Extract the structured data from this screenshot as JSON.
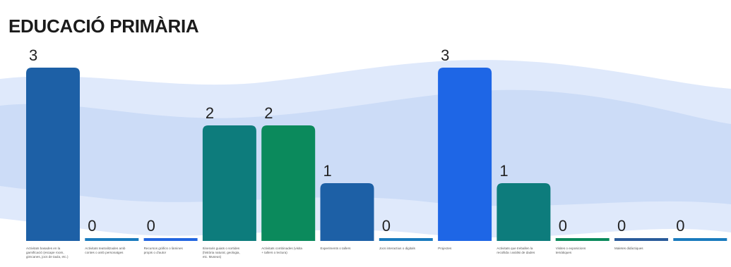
{
  "page": {
    "title": "EDUCACIÓ PRIMÀRIA"
  },
  "colors": {
    "background": "#ffffff",
    "wave_light": "#dfe9fb",
    "wave_mid": "#ccdcf7"
  },
  "chart_data": {
    "type": "bar",
    "title": "EDUCACIÓ PRIMÀRIA",
    "xlabel": "",
    "ylabel": "",
    "ylim": [
      0,
      3
    ],
    "grid": false,
    "legend": "none",
    "categories": [
      "Activitats basades en la gamificació (escape room, gimcanes, jocs de taula, etc.)",
      "Activitats teatralitzades amb contes o amb personatges",
      "Recursos gràfics o làmines propis o d'autor",
      "Itineraris guiats o sortides (història natural, geologia, etc. Museus)",
      "Activitats combinades (visita + tallers o lectura)",
      "Experiments o tallers",
      "Jocs interactius o digitals",
      "Projectes",
      "Activitats que treballen la recollida i anàlisi de dades",
      "Visites o exposicions temàtiques",
      "Maletes didàctiques",
      ""
    ],
    "values": [
      3,
      0,
      0,
      2,
      2,
      1,
      0,
      3,
      1,
      0,
      0,
      0
    ],
    "colors": [
      "#1d60a6",
      "#1a7bbd",
      "#2366e0",
      "#0d7c7c",
      "#0b8a5c",
      "#1d60a6",
      "#1a7bbd",
      "#1e66e6",
      "#0d7c7c",
      "#0b8a5c",
      "#2a5b9a",
      "#1a7bbd"
    ]
  }
}
